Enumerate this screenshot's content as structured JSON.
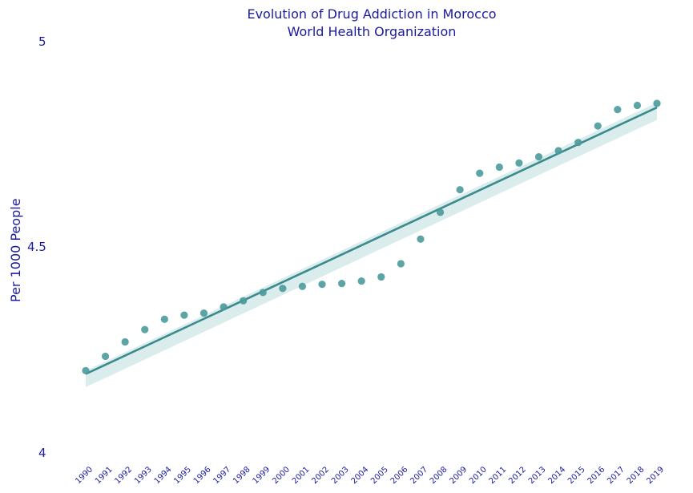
{
  "chart_data": {
    "type": "scatter",
    "title": "Evolution of Drug Addiction in Morocco",
    "subtitle": "World Health Organization",
    "ylabel": "Per 1000 People",
    "xlabel": "",
    "ylim": [
      4,
      5
    ],
    "yticks": [
      "4",
      "4.5",
      "5"
    ],
    "grid": false,
    "categories": [
      "1990",
      "1991",
      "1992",
      "1993",
      "1994",
      "1995",
      "1996",
      "1997",
      "1998",
      "1999",
      "2000",
      "2001",
      "2002",
      "2003",
      "2004",
      "2005",
      "2006",
      "2007",
      "2008",
      "2009",
      "2010",
      "2011",
      "2012",
      "2013",
      "2014",
      "2015",
      "2016",
      "2017",
      "2018",
      "2019"
    ],
    "values": [
      4.2,
      4.235,
      4.27,
      4.3,
      4.325,
      4.335,
      4.34,
      4.355,
      4.37,
      4.39,
      4.4,
      4.405,
      4.41,
      4.412,
      4.418,
      4.428,
      4.46,
      4.52,
      4.585,
      4.64,
      4.68,
      4.695,
      4.705,
      4.72,
      4.735,
      4.755,
      4.795,
      4.835,
      4.845,
      4.85
    ],
    "trend": {
      "start": 4.192,
      "end": 4.84
    },
    "colors": {
      "points": "#4a9a9c",
      "line": "#3a8a8e",
      "band": "#cfe6e6",
      "text": "#1a1aa0"
    }
  }
}
